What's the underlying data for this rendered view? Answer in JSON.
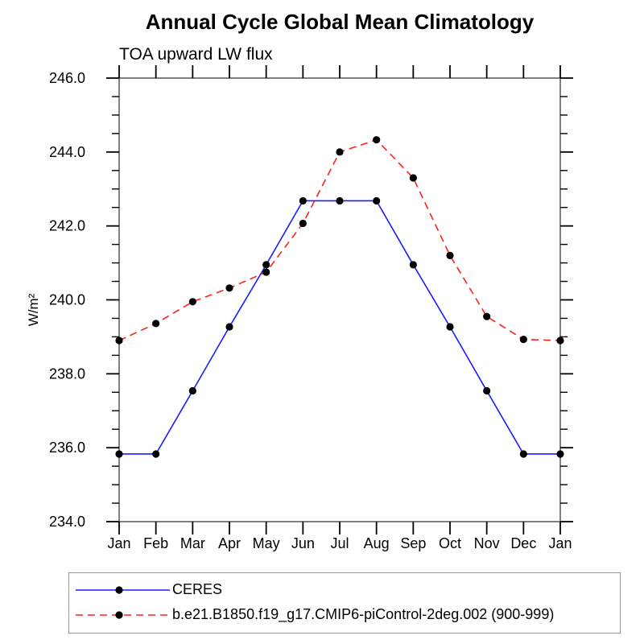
{
  "chart_data": {
    "type": "line",
    "title": "Annual Cycle Global Mean Climatology",
    "subtitle": "TOA upward LW flux",
    "ylabel": "W/m²",
    "xlabel": "",
    "ylim": [
      234.0,
      246.0
    ],
    "ytick_interval": 2.0,
    "yminor_interval": 0.5,
    "ytick_labels": [
      "234.0",
      "236.0",
      "238.0",
      "240.0",
      "242.0",
      "244.0",
      "246.0"
    ],
    "grid": false,
    "legend_position": "bottom-left-box",
    "categories": [
      "Jan",
      "Feb",
      "Mar",
      "Apr",
      "May",
      "Jun",
      "Jul",
      "Aug",
      "Sep",
      "Oct",
      "Nov",
      "Dec",
      "Jan"
    ],
    "series": [
      {
        "name": "CERES",
        "color": "#1a1aff",
        "line_style": "solid",
        "marker": "filled-circle",
        "marker_color": "#000000",
        "values": [
          235.83,
          235.83,
          237.54,
          239.27,
          240.95,
          242.68,
          242.68,
          242.68,
          240.95,
          239.27,
          237.54,
          235.83,
          235.83
        ]
      },
      {
        "name": "b.e21.B1850.f19_g17.CMIP6-piControl-2deg.002 (900-999)",
        "color": "#ff2020",
        "line_style": "dashed",
        "marker": "filled-circle",
        "marker_color": "#000000",
        "values": [
          238.9,
          239.36,
          239.95,
          240.32,
          240.75,
          242.07,
          244.0,
          244.33,
          243.3,
          241.2,
          239.55,
          238.93,
          238.9
        ]
      }
    ],
    "axis_color": "#4a4a4a",
    "tick_color": "#000000"
  }
}
